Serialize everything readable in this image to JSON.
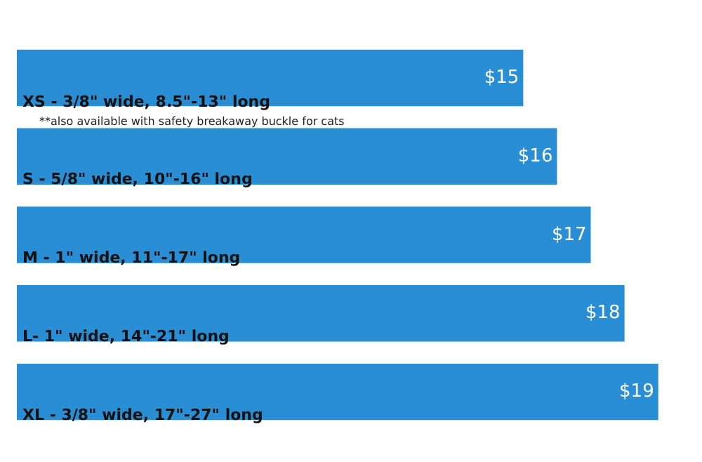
{
  "chart_data": {
    "type": "bar",
    "orientation": "horizontal",
    "categories": [
      "XS - 3/8\" wide, 8.5\"-13\" long",
      "S - 5/8\" wide, 10\"-16\" long",
      "M - 1\" wide, 11\"-17\" long",
      "L- 1\" wide, 14\"-21\" long",
      "XL - 3/8\" wide, 17\"-27\" long"
    ],
    "values": [
      15,
      16,
      17,
      18,
      19
    ],
    "value_labels": [
      "$15",
      "$16",
      "$17",
      "$18",
      "$19"
    ],
    "color": "#2a8ed4",
    "annotations": [
      "**also available with safety breakaway buckle for cats"
    ]
  }
}
